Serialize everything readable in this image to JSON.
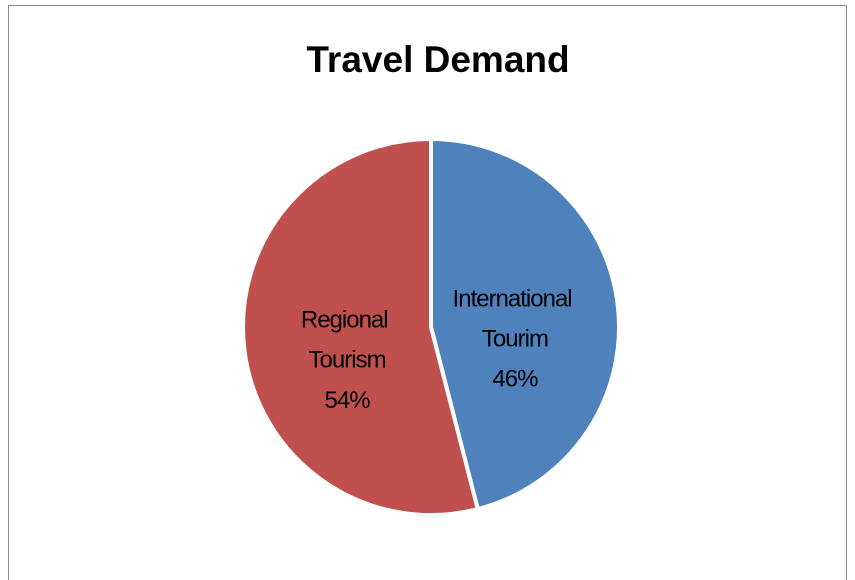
{
  "chart_data": {
    "type": "pie",
    "title": "Travel Demand",
    "categories": [
      "International Tourim",
      "Regional Tourism"
    ],
    "values": [
      46,
      54
    ],
    "value_labels": [
      "46%",
      "54%"
    ],
    "colors": [
      "#4f81bd",
      "#c0504d"
    ]
  }
}
